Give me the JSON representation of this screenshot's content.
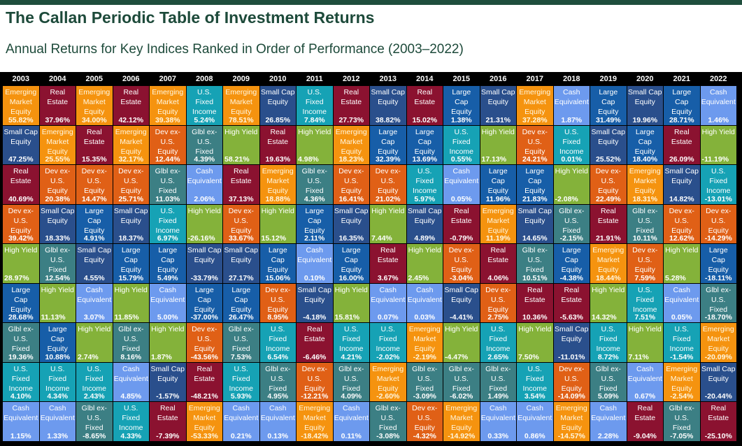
{
  "header": {
    "title": "The Callan Periodic Table of Investment Returns",
    "subtitle": "Annual Returns for Key Indices Ranked in Order of Performance (2003–2022)"
  },
  "colors": {
    "Emerging Market Equity": "#f5930f",
    "Real Estate": "#8b1230",
    "Small Cap Equity": "#2a4f8c",
    "Large Cap Equity": "#175ea8",
    "Dev ex-U.S. Equity": "#e06016",
    "Glbl ex-U.S. Fixed": "#3c7f84",
    "High Yield": "#84b23a",
    "U.S. Fixed Income": "#16a2b5",
    "Cash Equivalent": "#6d9aee"
  },
  "chart_data": {
    "type": "table",
    "years": [
      "2003",
      "2004",
      "2005",
      "2006",
      "2007",
      "2008",
      "2009",
      "2010",
      "2011",
      "2012",
      "2013",
      "2014",
      "2015",
      "2016",
      "2017",
      "2018",
      "2019",
      "2020",
      "2021",
      "2022"
    ],
    "columns": [
      [
        [
          "Emerging Market Equity",
          "55.82%"
        ],
        [
          "Small Cap Equity",
          "47.25%"
        ],
        [
          "Real Estate",
          "40.69%"
        ],
        [
          "Dev ex-U.S. Equity",
          "39.42%"
        ],
        [
          "High Yield",
          "28.97%"
        ],
        [
          "Large Cap Equity",
          "28.68%"
        ],
        [
          "Glbl ex-U.S. Fixed",
          "19.36%"
        ],
        [
          "U.S. Fixed Income",
          "4.10%"
        ],
        [
          "Cash Equivalent",
          "1.15%"
        ]
      ],
      [
        [
          "Real Estate",
          "37.96%"
        ],
        [
          "Emerging Market Equity",
          "25.55%"
        ],
        [
          "Dev ex-U.S. Equity",
          "20.38%"
        ],
        [
          "Small Cap Equity",
          "18.33%"
        ],
        [
          "Glbl ex-U.S. Fixed",
          "12.54%"
        ],
        [
          "High Yield",
          "11.13%"
        ],
        [
          "Large Cap Equity",
          "10.88%"
        ],
        [
          "U.S. Fixed Income",
          "4.34%"
        ],
        [
          "Cash Equivalent",
          "1.33%"
        ]
      ],
      [
        [
          "Emerging Market Equity",
          "34.00%"
        ],
        [
          "Real Estate",
          "15.35%"
        ],
        [
          "Dev ex-U.S. Equity",
          "14.47%"
        ],
        [
          "Large Cap Equity",
          "4.91%"
        ],
        [
          "Small Cap Equity",
          "4.55%"
        ],
        [
          "Cash Equivalent",
          "3.07%"
        ],
        [
          "High Yield",
          "2.74%"
        ],
        [
          "U.S. Fixed Income",
          "2.43%"
        ],
        [
          "Glbl ex-U.S. Fixed",
          "-8.65%"
        ]
      ],
      [
        [
          "Real Estate",
          "42.12%"
        ],
        [
          "Emerging Market Equity",
          "32.17%"
        ],
        [
          "Dev ex-U.S. Equity",
          "25.71%"
        ],
        [
          "Small Cap Equity",
          "18.37%"
        ],
        [
          "Large Cap Equity",
          "15.79%"
        ],
        [
          "High Yield",
          "11.85%"
        ],
        [
          "Glbl ex-U.S. Fixed",
          "8.16%"
        ],
        [
          "Cash Equivalent",
          "4.85%"
        ],
        [
          "U.S. Fixed Income",
          "4.33%"
        ]
      ],
      [
        [
          "Emerging Market Equity",
          "39.38%"
        ],
        [
          "Dev ex-U.S. Equity",
          "12.44%"
        ],
        [
          "Glbl ex-U.S. Fixed",
          "11.03%"
        ],
        [
          "U.S. Fixed Income",
          "6.97%"
        ],
        [
          "Large Cap Equity",
          "5.49%"
        ],
        [
          "Cash Equivalent",
          "5.00%"
        ],
        [
          "High Yield",
          "1.87%"
        ],
        [
          "Small Cap Equity",
          "-1.57%"
        ],
        [
          "Real Estate",
          "-7.39%"
        ]
      ],
      [
        [
          "U.S. Fixed Income",
          "5.24%"
        ],
        [
          "Glbl ex-U.S. Fixed",
          "4.39%"
        ],
        [
          "Cash Equivalent",
          "2.06%"
        ],
        [
          "High Yield",
          "-26.16%"
        ],
        [
          "Small Cap Equity",
          "-33.79%"
        ],
        [
          "Large Cap Equity",
          "-37.00%"
        ],
        [
          "Dev ex-U.S. Equity",
          "-43.56%"
        ],
        [
          "Real Estate",
          "-48.21%"
        ],
        [
          "Emerging Market Equity",
          "-53.33%"
        ]
      ],
      [
        [
          "Emerging Market Equity",
          "78.51%"
        ],
        [
          "High Yield",
          "58.21%"
        ],
        [
          "Real Estate",
          "37.13%"
        ],
        [
          "Dev ex-U.S. Equity",
          "33.67%"
        ],
        [
          "Small Cap Equity",
          "27.17%"
        ],
        [
          "Large Cap Equity",
          "26.47%"
        ],
        [
          "Glbl ex-U.S. Fixed",
          "7.53%"
        ],
        [
          "U.S. Fixed Income",
          "5.93%"
        ],
        [
          "Cash Equivalent",
          "0.21%"
        ]
      ],
      [
        [
          "Small Cap Equity",
          "26.85%"
        ],
        [
          "Real Estate",
          "19.63%"
        ],
        [
          "Emerging Market Equity",
          "18.88%"
        ],
        [
          "High Yield",
          "15.12%"
        ],
        [
          "Large Cap Equity",
          "15.06%"
        ],
        [
          "Dev ex-U.S. Equity",
          "8.95%"
        ],
        [
          "U.S. Fixed Income",
          "6.54%"
        ],
        [
          "Glbl ex-U.S. Fixed",
          "4.95%"
        ],
        [
          "Cash Equivalent",
          "0.13%"
        ]
      ],
      [
        [
          "U.S. Fixed Income",
          "7.84%"
        ],
        [
          "High Yield",
          "4.98%"
        ],
        [
          "Glbl ex-U.S. Fixed",
          "4.36%"
        ],
        [
          "Large Cap Equity",
          "2.11%"
        ],
        [
          "Cash Equivalent",
          "0.10%"
        ],
        [
          "Small Cap Equity",
          "-4.18%"
        ],
        [
          "Real Estate",
          "-6.46%"
        ],
        [
          "Dev ex-U.S. Equity",
          "-12.21%"
        ],
        [
          "Emerging Market Equity",
          "-18.42%"
        ]
      ],
      [
        [
          "Real Estate",
          "27.73%"
        ],
        [
          "Emerging Market Equity",
          "18.23%"
        ],
        [
          "Dev ex-U.S. Equity",
          "16.41%"
        ],
        [
          "Small Cap Equity",
          "16.35%"
        ],
        [
          "Large Cap Equity",
          "16.00%"
        ],
        [
          "High Yield",
          "15.81%"
        ],
        [
          "U.S. Fixed Income",
          "4.21%"
        ],
        [
          "Glbl ex-U.S. Fixed",
          "4.09%"
        ],
        [
          "Cash Equivalent",
          "0.11%"
        ]
      ],
      [
        [
          "Small Cap Equity",
          "38.82%"
        ],
        [
          "Large Cap Equity",
          "32.39%"
        ],
        [
          "Dev ex-U.S. Equity",
          "21.02%"
        ],
        [
          "High Yield",
          "7.44%"
        ],
        [
          "Real Estate",
          "3.67%"
        ],
        [
          "Cash Equivalent",
          "0.07%"
        ],
        [
          "U.S. Fixed Income",
          "-2.02%"
        ],
        [
          "Emerging Market Equity",
          "-2.60%"
        ],
        [
          "Glbl ex-U.S. Fixed",
          "-3.08%"
        ]
      ],
      [
        [
          "Real Estate",
          "15.02%"
        ],
        [
          "Large Cap Equity",
          "13.69%"
        ],
        [
          "U.S. Fixed Income",
          "5.97%"
        ],
        [
          "Small Cap Equity",
          "4.89%"
        ],
        [
          "High Yield",
          "2.45%"
        ],
        [
          "Cash Equivalent",
          "0.03%"
        ],
        [
          "Emerging Market Equity",
          "-2.19%"
        ],
        [
          "Glbl ex-U.S. Fixed",
          "-3.09%"
        ],
        [
          "Dev ex-U.S. Equity",
          "-4.32%"
        ]
      ],
      [
        [
          "Large Cap Equity",
          "1.38%"
        ],
        [
          "U.S. Fixed Income",
          "0.55%"
        ],
        [
          "Cash Equivalent",
          "0.05%"
        ],
        [
          "Real Estate",
          "-0.79%"
        ],
        [
          "Dev ex-U.S. Equity",
          "-3.04%"
        ],
        [
          "Small Cap Equity",
          "-4.41%"
        ],
        [
          "High Yield",
          "-4.47%"
        ],
        [
          "Glbl ex-U.S. Fixed",
          "-6.02%"
        ],
        [
          "Emerging Market Equity",
          "-14.92%"
        ]
      ],
      [
        [
          "Small Cap Equity",
          "21.31%"
        ],
        [
          "High Yield",
          "17.13%"
        ],
        [
          "Large Cap Equity",
          "11.96%"
        ],
        [
          "Emerging Market Equity",
          "11.19%"
        ],
        [
          "Real Estate",
          "4.06%"
        ],
        [
          "Dev ex-U.S. Equity",
          "2.75%"
        ],
        [
          "U.S. Fixed Income",
          "2.65%"
        ],
        [
          "Glbl ex-U.S. Fixed",
          "1.49%"
        ],
        [
          "Cash Equivalent",
          "0.33%"
        ]
      ],
      [
        [
          "Emerging Market Equity",
          "37.28%"
        ],
        [
          "Dev ex-U.S. Equity",
          "24.21%"
        ],
        [
          "Large Cap Equity",
          "21.83%"
        ],
        [
          "Small Cap Equity",
          "14.65%"
        ],
        [
          "Glbl ex-U.S. Fixed",
          "10.51%"
        ],
        [
          "Real Estate",
          "10.36%"
        ],
        [
          "High Yield",
          "7.50%"
        ],
        [
          "U.S. Fixed Income",
          "3.54%"
        ],
        [
          "Cash Equivalent",
          "0.86%"
        ]
      ],
      [
        [
          "Cash Equivalent",
          "1.87%"
        ],
        [
          "U.S. Fixed Income",
          "0.01%"
        ],
        [
          "High Yield",
          "-2.08%"
        ],
        [
          "Glbl ex-U.S. Fixed",
          "-2.15%"
        ],
        [
          "Large Cap Equity",
          "-4.38%"
        ],
        [
          "Real Estate",
          "-5.63%"
        ],
        [
          "Small Cap Equity",
          "-11.01%"
        ],
        [
          "Dev ex-U.S. Equity",
          "-14.09%"
        ],
        [
          "Emerging Market Equity",
          "-14.57%"
        ]
      ],
      [
        [
          "Large Cap Equity",
          "31.49%"
        ],
        [
          "Small Cap Equity",
          "25.52%"
        ],
        [
          "Dev ex-U.S. Equity",
          "22.49%"
        ],
        [
          "Real Estate",
          "21.91%"
        ],
        [
          "Emerging Market Equity",
          "18.44%"
        ],
        [
          "High Yield",
          "14.32%"
        ],
        [
          "U.S. Fixed Income",
          "8.72%"
        ],
        [
          "Glbl ex-U.S. Fixed",
          "5.09%"
        ],
        [
          "Cash Equivalent",
          "2.28%"
        ]
      ],
      [
        [
          "Small Cap Equity",
          "19.96%"
        ],
        [
          "Large Cap Equity",
          "18.40%"
        ],
        [
          "Emerging Market Equity",
          "18.31%"
        ],
        [
          "Glbl ex-U.S. Fixed",
          "10.11%"
        ],
        [
          "Dev ex-U.S. Equity",
          "7.59%"
        ],
        [
          "U.S. Fixed Income",
          "7.51%"
        ],
        [
          "High Yield",
          "7.11%"
        ],
        [
          "Cash Equivalent",
          "0.67%"
        ],
        [
          "Real Estate",
          "-9.04%"
        ]
      ],
      [
        [
          "Large Cap Equity",
          "28.71%"
        ],
        [
          "Real Estate",
          "26.09%"
        ],
        [
          "Small Cap Equity",
          "14.82%"
        ],
        [
          "Dev ex-U.S. Equity",
          "12.62%"
        ],
        [
          "High Yield",
          "5.28%"
        ],
        [
          "Cash Equivalent",
          "0.05%"
        ],
        [
          "U.S. Fixed Income",
          "-1.54%"
        ],
        [
          "Emerging Market Equity",
          "-2.54%"
        ],
        [
          "Glbl ex-U.S. Fixed",
          "-7.05%"
        ]
      ],
      [
        [
          "Cash Equivalent",
          "1.46%"
        ],
        [
          "High Yield",
          "-11.19%"
        ],
        [
          "U.S. Fixed Income",
          "-13.01%"
        ],
        [
          "Dev ex-U.S. Equity",
          "-14.29%"
        ],
        [
          "Large Cap Equity",
          "-18.11%"
        ],
        [
          "Glbl ex-U.S. Fixed",
          "-18.70%"
        ],
        [
          "Emerging Market Equity",
          "-20.09%"
        ],
        [
          "Small Cap Equity",
          "-20.44%"
        ],
        [
          "Real Estate",
          "-25.10%"
        ]
      ]
    ]
  }
}
